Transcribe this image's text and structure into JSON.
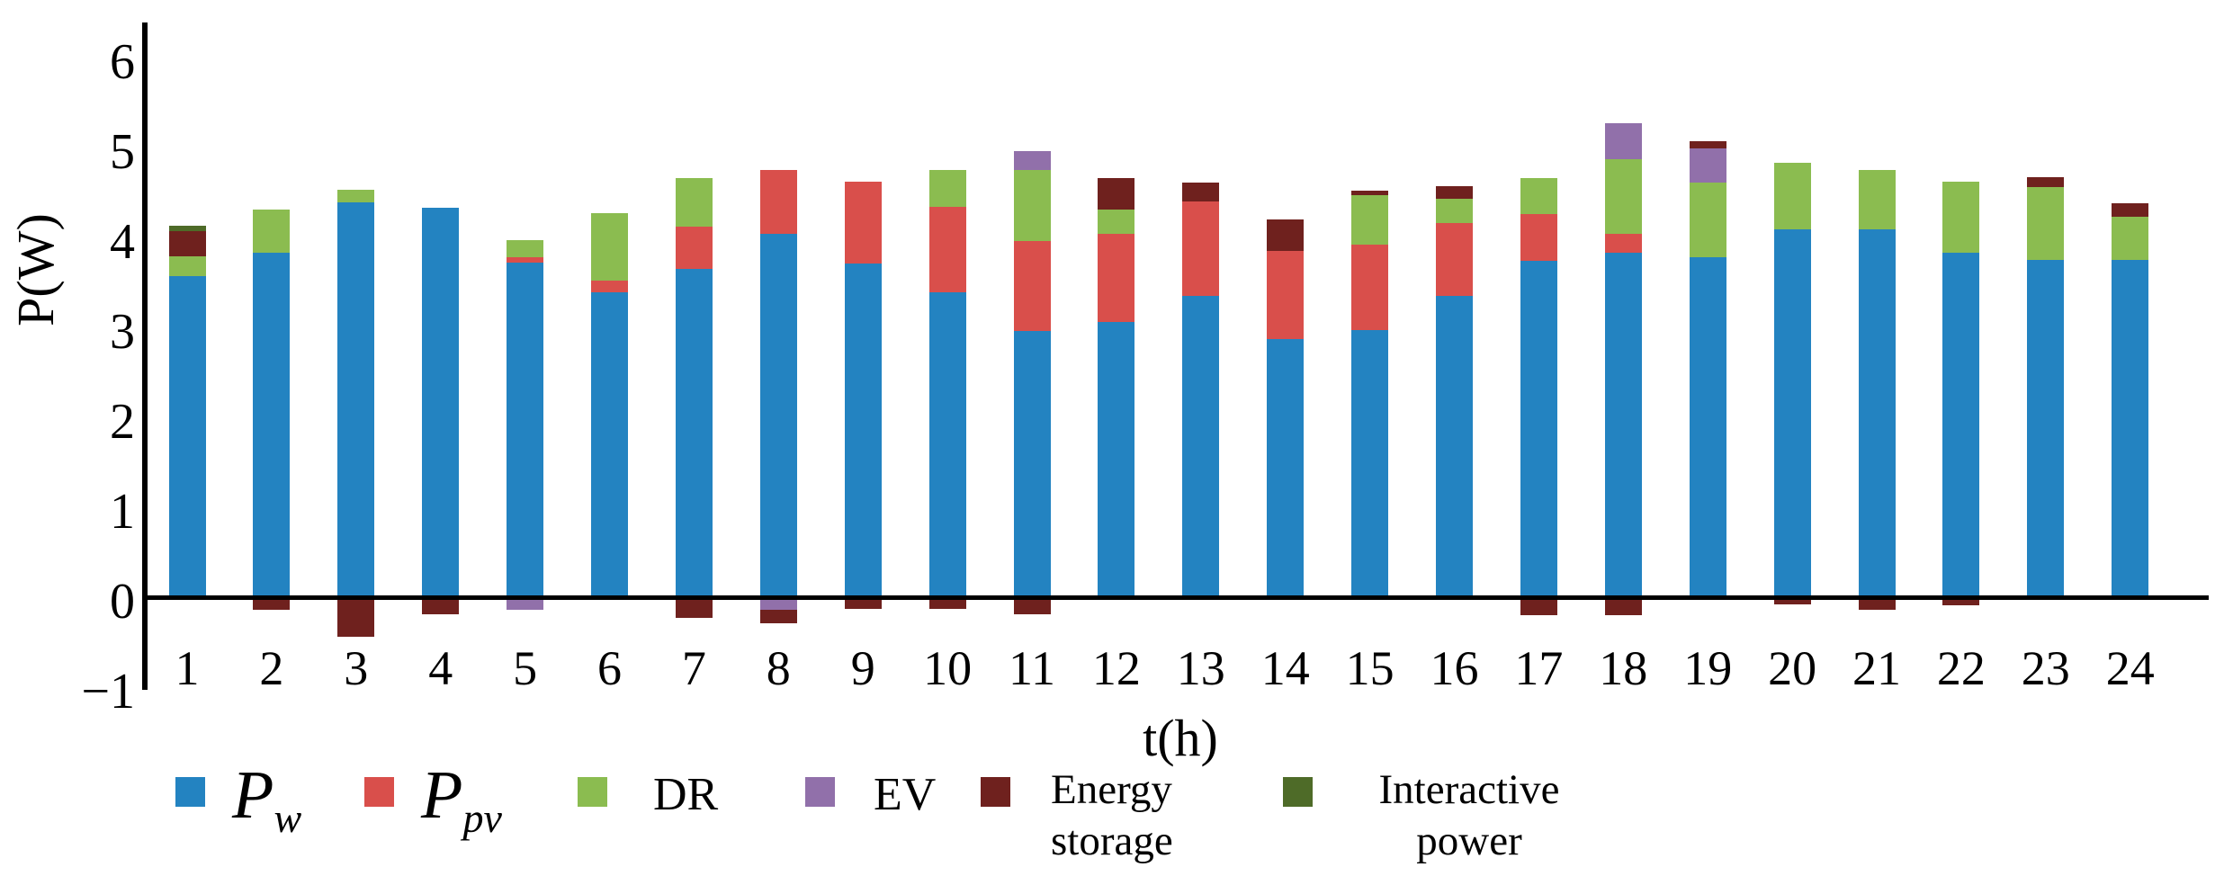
{
  "chart_data": {
    "type": "bar",
    "stacked": true,
    "title": "",
    "xlabel": "t(h)",
    "ylabel": "P(W)",
    "ylim": [
      -1,
      6.4
    ],
    "yticks": [
      6,
      5,
      4,
      3,
      2,
      1,
      0,
      -1
    ],
    "grid": false,
    "legend_position": "bottom",
    "categories": [
      1,
      2,
      3,
      4,
      5,
      6,
      7,
      8,
      9,
      10,
      11,
      12,
      13,
      14,
      15,
      16,
      17,
      18,
      19,
      20,
      21,
      22,
      23,
      24
    ],
    "series": [
      {
        "name": "Pw",
        "color": "#2383c1",
        "values": [
          3.58,
          3.84,
          4.4,
          4.34,
          3.73,
          3.4,
          3.66,
          4.05,
          3.72,
          3.4,
          2.97,
          3.07,
          3.36,
          2.88,
          2.98,
          3.36,
          3.75,
          3.84,
          3.79,
          4.1,
          4.1,
          3.84,
          3.76,
          3.76
        ]
      },
      {
        "name": "Ppv",
        "color": "#d94f4b",
        "values": [
          0,
          0,
          0,
          0,
          0.06,
          0.13,
          0.47,
          0.71,
          0.91,
          0.95,
          1.0,
          0.98,
          1.05,
          0.98,
          0.95,
          0.81,
          0.52,
          0.21,
          0,
          0,
          0,
          0,
          0,
          0
        ]
      },
      {
        "name": "DR",
        "color": "#8bbc50",
        "values": [
          0.22,
          0.48,
          0.14,
          0,
          0.19,
          0.75,
          0.54,
          0,
          0,
          0.41,
          0.79,
          0.27,
          0,
          0,
          0.55,
          0.27,
          0.4,
          0.83,
          0.83,
          0.74,
          0.66,
          0.79,
          0.81,
          0.48
        ]
      },
      {
        "name": "EV",
        "color": "#9170aa",
        "values": [
          0,
          0,
          0,
          0,
          -0.13,
          0,
          0,
          -0.13,
          0,
          0,
          0.21,
          0,
          0,
          0,
          0,
          0,
          0,
          0.4,
          0.38,
          0,
          0,
          0,
          0,
          0
        ]
      },
      {
        "name": "Energy storage",
        "color": "#6f211e",
        "values": [
          0.28,
          -0.13,
          -0.43,
          -0.18,
          0,
          0,
          -0.22,
          -0.15,
          -0.12,
          -0.12,
          -0.18,
          0.35,
          0.21,
          0.35,
          0.05,
          0.14,
          -0.19,
          -0.19,
          0.08,
          -0.07,
          -0.13,
          -0.08,
          0.11,
          0.15
        ]
      },
      {
        "name": "Interactive power",
        "color": "#4e6b28",
        "values": [
          0.06,
          0,
          0,
          0,
          0,
          0,
          0,
          0,
          0,
          0,
          0,
          0,
          0,
          0,
          0,
          0,
          0,
          0,
          0,
          0,
          0,
          0,
          0,
          0
        ]
      }
    ]
  },
  "legend": {
    "items": [
      {
        "id": "pw",
        "color": "#2383c1",
        "label_main": "P",
        "label_sub": "w"
      },
      {
        "id": "ppv",
        "color": "#d94f4b",
        "label_main": "P",
        "label_sub": "pv"
      },
      {
        "id": "dr",
        "color": "#8bbc50",
        "label": "DR"
      },
      {
        "id": "ev",
        "color": "#9170aa",
        "label": "EV"
      },
      {
        "id": "energy-storage",
        "color": "#6f211e",
        "lines": [
          "Energy",
          "storage"
        ]
      },
      {
        "id": "interactive-power",
        "color": "#4e6b28",
        "lines": [
          "Interactive",
          "power"
        ]
      }
    ]
  }
}
